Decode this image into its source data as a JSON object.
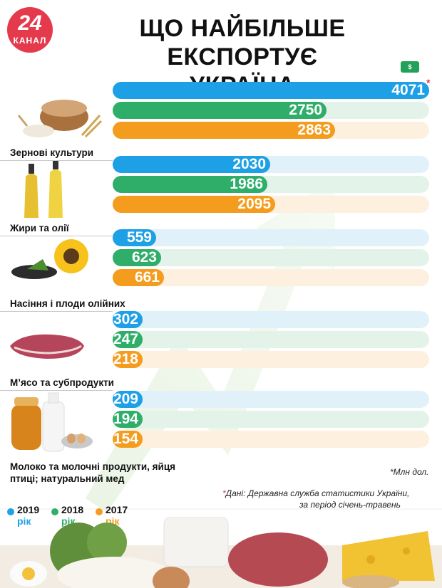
{
  "header": {
    "logo_number": "24",
    "logo_label": "КАНАЛ",
    "title_line1": "ЩО НАЙБІЛЬШЕ ЕКСПОРТУЄ",
    "title_line2": "УКРАЇНА"
  },
  "icons": {
    "money": "money-icon"
  },
  "colors": {
    "2019": "#1ea0e6",
    "2018": "#2fae6a",
    "2017": "#f39c1e"
  },
  "chart_data": {
    "type": "bar",
    "orientation": "horizontal",
    "unit_note": "*Млн дол.",
    "value_max": 4071,
    "categories": [
      "Зернові культури",
      "Жири та олії",
      "Насіння і плоди олійних",
      "М’ясо та субпродукти",
      "Молоко та молочні продукти, яйця птиці; натуральний мед"
    ],
    "series": [
      {
        "name": "2019 рік",
        "values": [
          4071,
          2030,
          559,
          302,
          209
        ]
      },
      {
        "name": "2018 рік",
        "values": [
          2750,
          1986,
          623,
          247,
          194
        ]
      },
      {
        "name": "2017 рік",
        "values": [
          2863,
          2095,
          661,
          218,
          154
        ]
      }
    ]
  },
  "notes": {
    "unit": "*Млн дол.",
    "source_line1": "Дані: Державна служба статистики України,",
    "source_line2": "за період січень-травень",
    "star": "*"
  },
  "legend": [
    {
      "year": "2019",
      "unit": "рік"
    },
    {
      "year": "2018",
      "unit": "рік"
    },
    {
      "year": "2017",
      "unit": "рік"
    }
  ]
}
